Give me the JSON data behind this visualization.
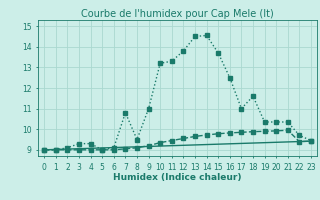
{
  "title": "Courbe de l'humidex pour Cap Mele (It)",
  "xlabel": "Humidex (Indice chaleur)",
  "bg_color": "#cceee8",
  "line_color": "#1a7a6a",
  "grid_color": "#aad8d0",
  "x_min": -0.5,
  "x_max": 23.5,
  "y_min": 8.7,
  "y_max": 15.3,
  "yticks": [
    9,
    10,
    11,
    12,
    13,
    14,
    15
  ],
  "xticks": [
    0,
    1,
    2,
    3,
    4,
    5,
    6,
    7,
    8,
    9,
    10,
    11,
    12,
    13,
    14,
    15,
    16,
    17,
    18,
    19,
    20,
    21,
    22,
    23
  ],
  "line1_x": [
    0,
    1,
    2,
    3,
    4,
    5,
    6,
    7,
    8,
    9,
    10,
    11,
    12,
    13,
    14,
    15,
    16,
    17,
    18,
    19,
    20,
    21,
    22,
    23
  ],
  "line1_y": [
    9.0,
    9.0,
    9.1,
    9.3,
    9.3,
    9.0,
    9.1,
    10.8,
    9.5,
    11.0,
    13.2,
    13.3,
    13.8,
    14.5,
    14.55,
    13.7,
    12.5,
    11.0,
    11.6,
    10.35,
    10.35,
    10.35,
    9.7,
    9.45
  ],
  "line2_x": [
    0,
    1,
    2,
    3,
    4,
    5,
    6,
    7,
    8,
    9,
    10,
    11,
    12,
    13,
    14,
    15,
    16,
    17,
    18,
    19,
    20,
    21,
    22,
    23
  ],
  "line2_y": [
    9.0,
    9.0,
    9.0,
    9.0,
    9.0,
    9.0,
    9.0,
    9.05,
    9.1,
    9.2,
    9.35,
    9.45,
    9.55,
    9.65,
    9.72,
    9.78,
    9.82,
    9.85,
    9.88,
    9.9,
    9.92,
    9.95,
    9.4,
    9.42
  ],
  "line3_x": [
    0,
    23
  ],
  "line3_y": [
    9.0,
    9.42
  ],
  "marker_size": 2.5,
  "line_width": 1.0,
  "title_fontsize": 7,
  "label_fontsize": 6.5,
  "tick_fontsize": 5.5
}
